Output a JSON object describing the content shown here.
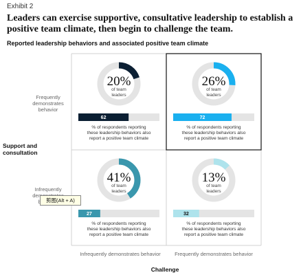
{
  "exhibit": "Exhibit 2",
  "title": "Leaders can exercise supportive, consultative leadership to establish a positive team climate, then begin to challenge the team.",
  "subtitle": "Reported leadership behaviors and associated positive team climate",
  "tooltip": "剪图(Alt + A)",
  "chart_data": {
    "type": "quadrant",
    "title": "Reported leadership behaviors and associated positive team climate",
    "ylabel": "Support and consultation",
    "xlabel": "Challenge",
    "y_categories": [
      "Frequently demonstrates behavior",
      "Infrequently demonstrates behavior"
    ],
    "x_categories": [
      "Infrequently demonstrates behavior",
      "Frequently demonstrates behavior"
    ],
    "ring_caption": "of team leaders",
    "bar_caption": "% of respondents reporting these leadership behaviors also report a positive team climate",
    "quadrants": [
      {
        "support": "Frequently demonstrates behavior",
        "challenge": "Infrequently demonstrates behavior",
        "pct_label": "20%",
        "share_of_leaders": 20,
        "positive_climate_label": "62",
        "positive_climate": 62,
        "color": "#0b1f33"
      },
      {
        "support": "Frequently demonstrates behavior",
        "challenge": "Frequently demonstrates behavior",
        "pct_label": "26%",
        "share_of_leaders": 26,
        "positive_climate_label": "72",
        "positive_climate": 72,
        "color": "#1ab0ef"
      },
      {
        "support": "Infrequently demonstrates behavior",
        "challenge": "Infrequently demonstrates behavior",
        "pct_label": "41%",
        "share_of_leaders": 41,
        "positive_climate_label": "27",
        "positive_climate": 27,
        "color": "#3a97ad"
      },
      {
        "support": "Infrequently demonstrates behavior",
        "challenge": "Frequently demonstrates behavior",
        "pct_label": "13%",
        "share_of_leaders": 13,
        "positive_climate_label": "32",
        "positive_climate": 32,
        "color": "#aee3ec"
      }
    ]
  },
  "colors": {
    "track": "#e4e4e4",
    "grid": "#d0d0d0",
    "highlight_border": "#111111"
  }
}
